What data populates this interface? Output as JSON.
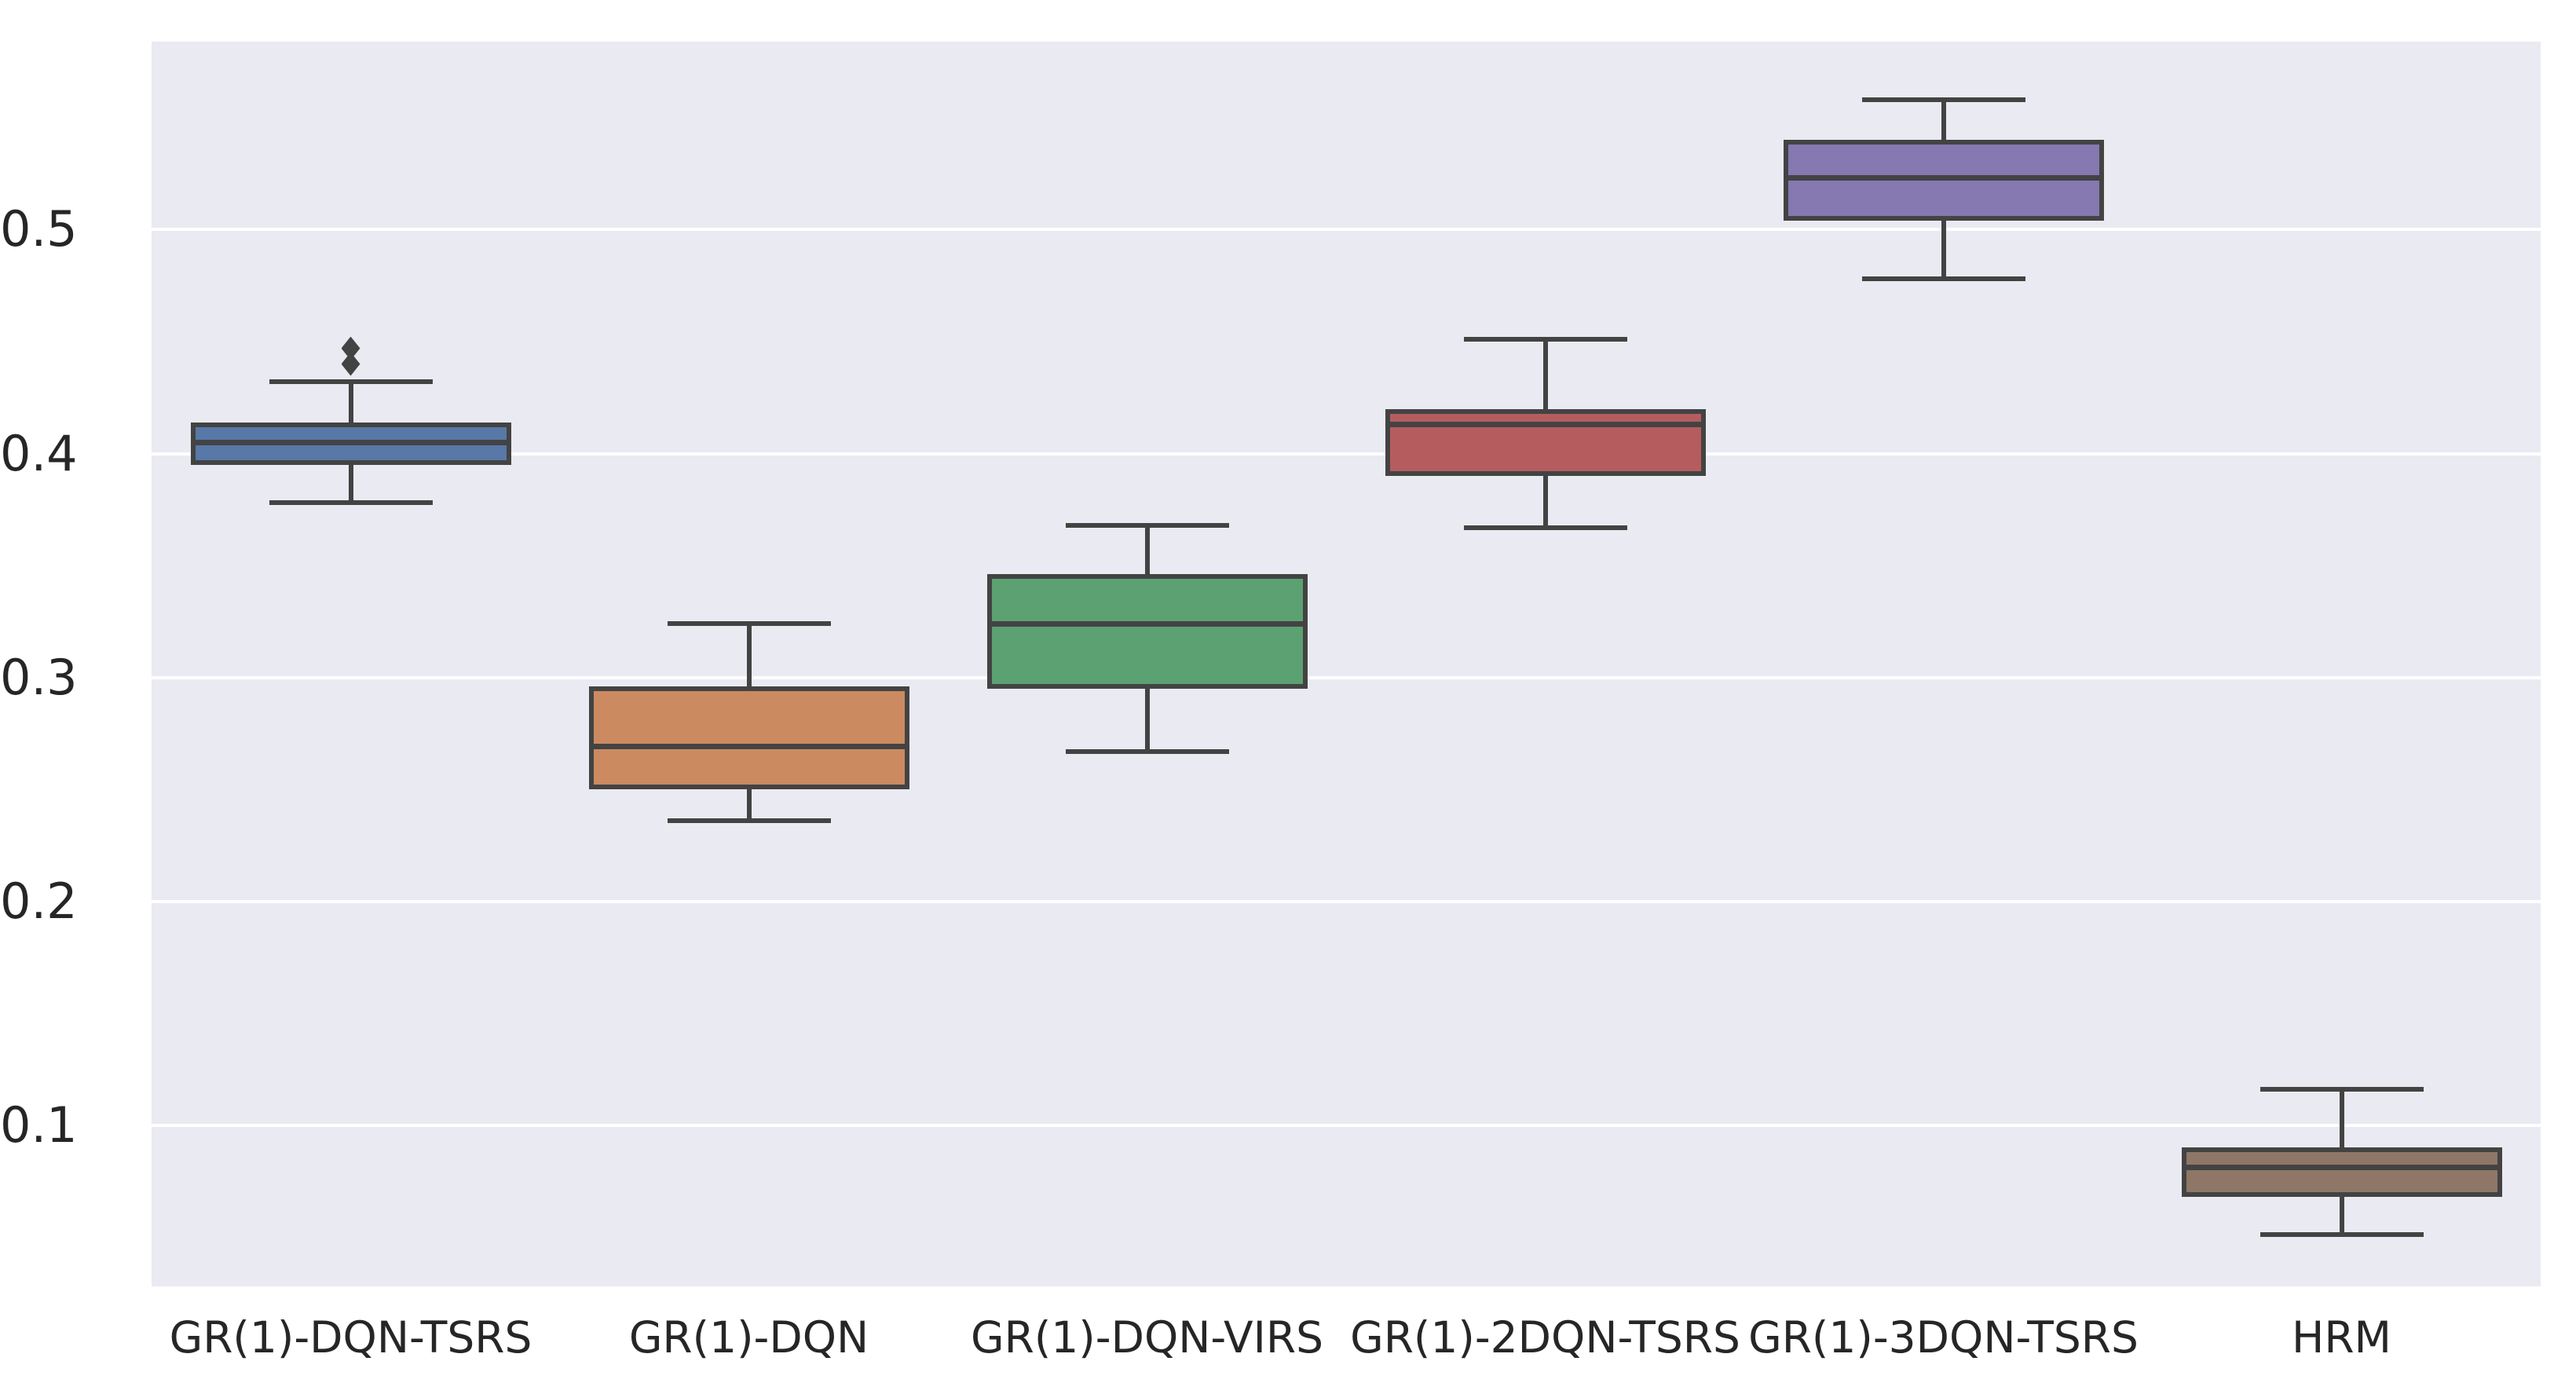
{
  "chart_data": {
    "type": "box",
    "title": "",
    "xlabel": "",
    "ylabel": "",
    "grid": true,
    "legend": "none",
    "categories": [
      "GR(1)-DQN-TSRS",
      "GR(1)-DQN",
      "GR(1)-DQN-VIRS",
      "GR(1)-2DQN-TSRS",
      "GR(1)-3DQN-TSRS",
      "HRM"
    ],
    "y_ticks": [
      "0.1",
      "0.2",
      "0.3",
      "0.4",
      "0.5"
    ],
    "y_tick_values": [
      0.1,
      0.2,
      0.3,
      0.4,
      0.5
    ],
    "ylim": [
      0.028,
      0.584
    ],
    "series": [
      {
        "label": "GR(1)-DQN-TSRS",
        "color": "#5878A8",
        "whisker_low": 0.378,
        "q1": 0.395,
        "median": 0.405,
        "q3": 0.414,
        "whisker_high": 0.432,
        "outliers": [
          0.44,
          0.447
        ]
      },
      {
        "label": "GR(1)-DQN",
        "color": "#CC8A60",
        "whisker_low": 0.236,
        "q1": 0.25,
        "median": 0.269,
        "q3": 0.296,
        "whisker_high": 0.324,
        "outliers": []
      },
      {
        "label": "GR(1)-DQN-VIRS",
        "color": "#5CA171",
        "whisker_low": 0.267,
        "q1": 0.295,
        "median": 0.324,
        "q3": 0.346,
        "whisker_high": 0.368,
        "outliers": []
      },
      {
        "label": "GR(1)-2DQN-TSRS",
        "color": "#B55C5F",
        "whisker_low": 0.367,
        "q1": 0.39,
        "median": 0.413,
        "q3": 0.42,
        "whisker_high": 0.451,
        "outliers": []
      },
      {
        "label": "GR(1)-3DQN-TSRS",
        "color": "#8678B0",
        "whisker_low": 0.478,
        "q1": 0.504,
        "median": 0.523,
        "q3": 0.54,
        "whisker_high": 0.558,
        "outliers": []
      },
      {
        "label": "HRM",
        "color": "#8E7767",
        "whisker_low": 0.051,
        "q1": 0.068,
        "median": 0.081,
        "q3": 0.09,
        "whisker_high": 0.116,
        "outliers": []
      }
    ],
    "styles": {
      "plot_background": "#EAEAF2",
      "gridline_color": "#FFFFFF",
      "box_line_color": "#434343",
      "text_color": "#262626",
      "page_background": "#FFFFFF"
    }
  }
}
